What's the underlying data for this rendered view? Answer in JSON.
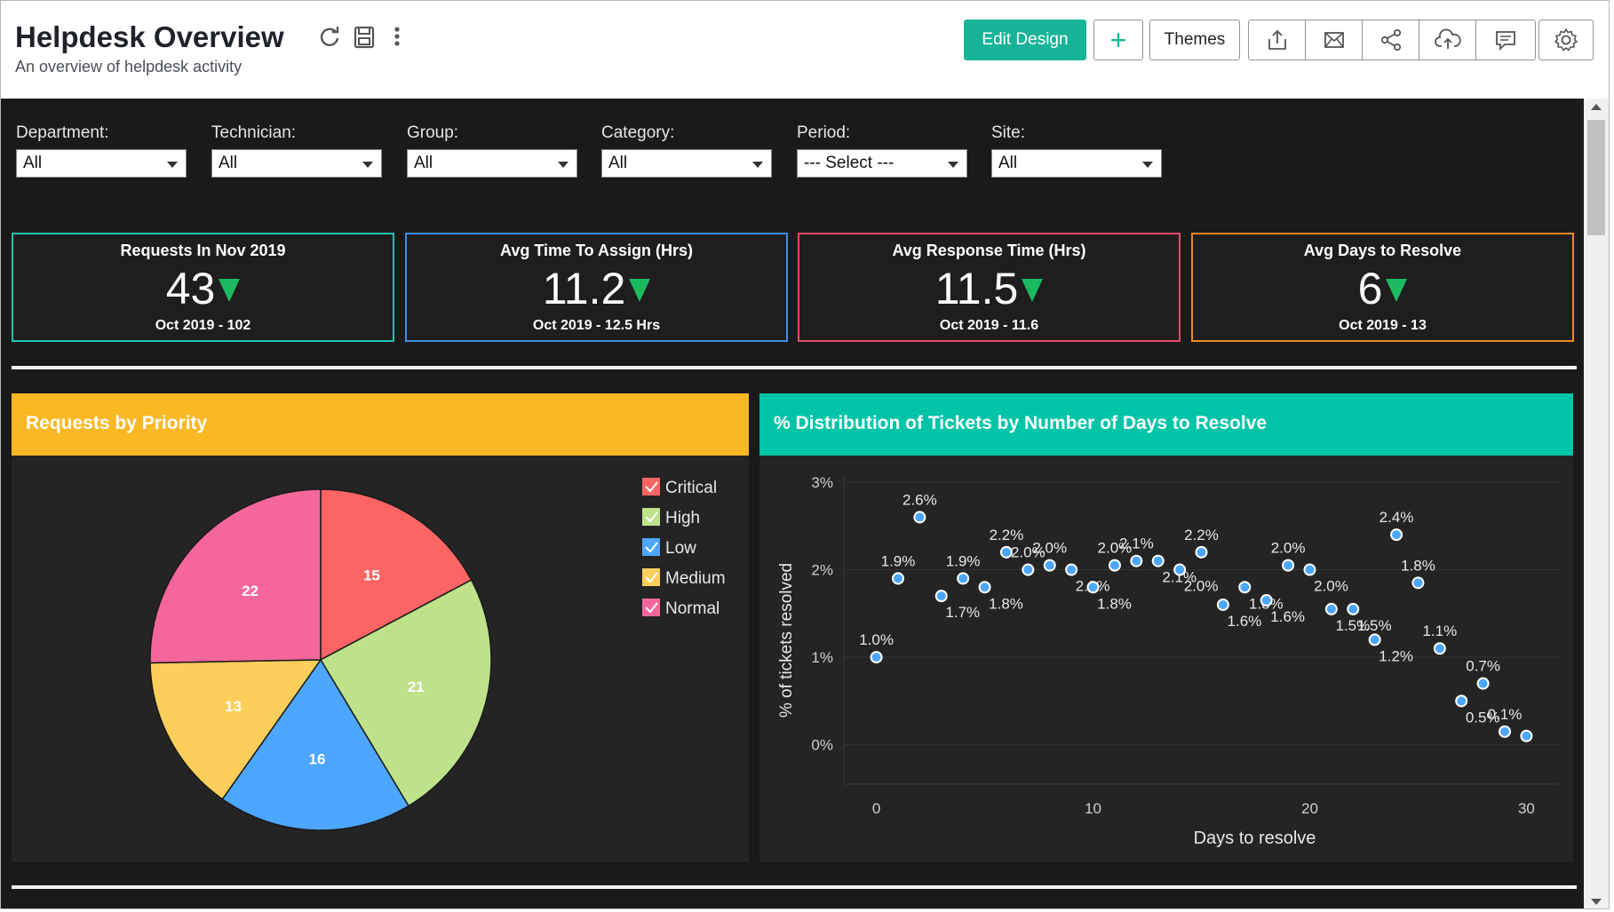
{
  "header": {
    "title": "Helpdesk Overview",
    "subtitle": "An overview of helpdesk activity",
    "edit_design": "Edit Design",
    "add": "+",
    "themes": "Themes",
    "icons": [
      "refresh-icon",
      "save-icon",
      "more-vertical-icon",
      "export-icon",
      "email-icon",
      "share-icon",
      "cloud-upload-icon",
      "comment-icon",
      "settings-icon"
    ]
  },
  "filters": [
    {
      "label": "Department:",
      "value": "All"
    },
    {
      "label": "Technician:",
      "value": "All"
    },
    {
      "label": "Group:",
      "value": "All"
    },
    {
      "label": "Category:",
      "value": "All"
    },
    {
      "label": "Period:",
      "value": "--- Select ---"
    },
    {
      "label": "Site:",
      "value": "All"
    }
  ],
  "kpis": [
    {
      "title": "Requests In Nov 2019",
      "value": "43",
      "compare": "Oct 2019 - 102",
      "color": "#1bc6ad"
    },
    {
      "title": "Avg Time To Assign (Hrs)",
      "value": "11.2",
      "compare": "Oct 2019 - 12.5 Hrs",
      "color": "#3d8fe8"
    },
    {
      "title": "Avg Response Time (Hrs)",
      "value": "11.5",
      "compare": "Oct 2019 - 11.6",
      "color": "#e24b6c"
    },
    {
      "title": "Avg Days to Resolve",
      "value": "6",
      "compare": "Oct 2019 - 13",
      "color": "#f08a24"
    }
  ],
  "panels": {
    "priority_title": "Requests by Priority",
    "priority_color": "#fbb825",
    "distribution_title": "% Distribution of Tickets by Number of Days to Resolve",
    "distribution_color": "#00c4a7"
  },
  "chart_data": [
    {
      "type": "pie",
      "title": "Requests by Priority",
      "categories": [
        "Critical",
        "High",
        "Low",
        "Medium",
        "Normal"
      ],
      "values": [
        15,
        21,
        16,
        13,
        22
      ],
      "colors": [
        "#fd6464",
        "#bde289",
        "#4da6ff",
        "#fece5a",
        "#f5679b"
      ],
      "legend": "top-right"
    },
    {
      "type": "scatter",
      "title": "% Distribution of Tickets by Number of Days to Resolve",
      "xlabel": "Days to resolve",
      "ylabel": "% of tickets resolved",
      "xlim": [
        -1.5,
        31.5
      ],
      "ylim": [
        -0.45,
        3.0
      ],
      "xticks": [
        0,
        10,
        20,
        30
      ],
      "yticks": [
        0,
        1,
        2,
        3
      ],
      "ytick_labels": [
        "0%",
        "1%",
        "2%",
        "3%"
      ],
      "points": [
        {
          "x": 0,
          "y": 1.0,
          "label": "1.0%"
        },
        {
          "x": 1,
          "y": 1.9,
          "label": "1.9%"
        },
        {
          "x": 2,
          "y": 2.6,
          "label": "2.6%"
        },
        {
          "x": 3,
          "y": 1.7,
          "label": "1.7%"
        },
        {
          "x": 4,
          "y": 1.9,
          "label": "1.9%"
        },
        {
          "x": 5,
          "y": 1.8,
          "label": "1.8%"
        },
        {
          "x": 6,
          "y": 2.2,
          "label": "2.2%"
        },
        {
          "x": 7,
          "y": 2.0,
          "label": "2.0%"
        },
        {
          "x": 8,
          "y": 2.05,
          "label": "2.0%"
        },
        {
          "x": 9,
          "y": 2.0,
          "label": "2.0%"
        },
        {
          "x": 10,
          "y": 1.8,
          "label": "1.8%"
        },
        {
          "x": 11,
          "y": 2.05,
          "label": "2.0%"
        },
        {
          "x": 12,
          "y": 2.1,
          "label": "2.1%"
        },
        {
          "x": 13,
          "y": 2.1,
          "label": "2.1%"
        },
        {
          "x": 14,
          "y": 2.0,
          "label": "2.0%"
        },
        {
          "x": 15,
          "y": 2.2,
          "label": "2.2%"
        },
        {
          "x": 16,
          "y": 1.6,
          "label": "1.6%"
        },
        {
          "x": 17,
          "y": 1.8,
          "label": "1.8%"
        },
        {
          "x": 18,
          "y": 1.65,
          "label": "1.6%"
        },
        {
          "x": 19,
          "y": 2.05,
          "label": "2.0%"
        },
        {
          "x": 20,
          "y": 2.0,
          "label": "2.0%"
        },
        {
          "x": 21,
          "y": 1.55,
          "label": "1.5%"
        },
        {
          "x": 22,
          "y": 1.55,
          "label": "1.5%"
        },
        {
          "x": 23,
          "y": 1.2,
          "label": "1.2%"
        },
        {
          "x": 24,
          "y": 2.4,
          "label": "2.4%"
        },
        {
          "x": 25,
          "y": 1.85,
          "label": "1.8%"
        },
        {
          "x": 26,
          "y": 1.1,
          "label": "1.1%"
        },
        {
          "x": 27,
          "y": 0.5,
          "label": "0.5%"
        },
        {
          "x": 28,
          "y": 0.7,
          "label": "0.7%"
        },
        {
          "x": 29,
          "y": 0.15,
          "label": "0.1%"
        },
        {
          "x": 30,
          "y": 0.1,
          "label": ""
        }
      ]
    }
  ]
}
